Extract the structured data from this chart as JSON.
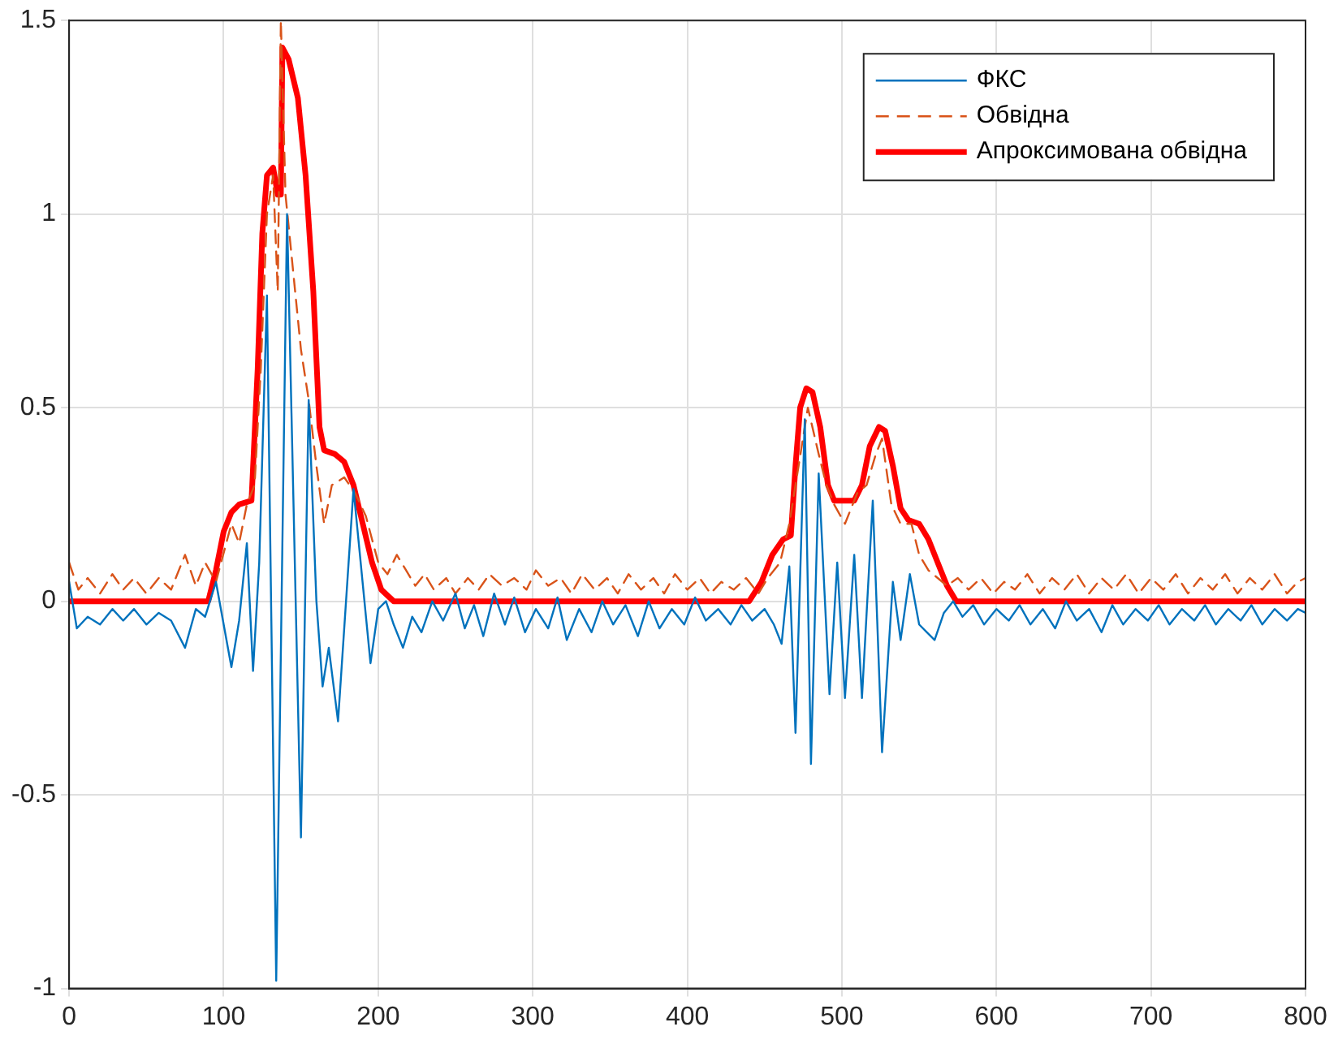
{
  "chart_data": {
    "type": "line",
    "grid": true,
    "legend": "top right",
    "marker": "none",
    "xlim": [
      0,
      800
    ],
    "xticks": [
      0,
      100,
      200,
      300,
      400,
      500,
      600,
      700,
      800
    ],
    "ylim": [
      -1,
      1.5
    ],
    "yticks": [
      -1,
      -0.5,
      0,
      0.5,
      1,
      1.5
    ],
    "series": [
      {
        "name": "ФКС",
        "color": "#0072bd",
        "line_style": "solid",
        "x": [
          0,
          5,
          12,
          20,
          28,
          35,
          42,
          50,
          58,
          66,
          75,
          82,
          88,
          95,
          105,
          110,
          115,
          119,
          123,
          128,
          134,
          141,
          150,
          155,
          160,
          164,
          168,
          174,
          184,
          195,
          200,
          205,
          210,
          216,
          222,
          228,
          235,
          242,
          250,
          256,
          262,
          268,
          275,
          282,
          288,
          295,
          302,
          310,
          316,
          322,
          330,
          338,
          345,
          352,
          360,
          368,
          375,
          382,
          390,
          398,
          405,
          412,
          420,
          428,
          435,
          442,
          450,
          456,
          461,
          466,
          470,
          476,
          480,
          485,
          492,
          497,
          502,
          508,
          513,
          520,
          526,
          533,
          538,
          544,
          550,
          555,
          560,
          566,
          572,
          578,
          585,
          592,
          600,
          608,
          615,
          622,
          630,
          638,
          645,
          652,
          660,
          668,
          675,
          682,
          690,
          698,
          705,
          712,
          720,
          728,
          735,
          742,
          750,
          758,
          765,
          772,
          780,
          788,
          795,
          800
        ],
        "values": [
          0.05,
          -0.07,
          -0.04,
          -0.06,
          -0.02,
          -0.05,
          -0.02,
          -0.06,
          -0.03,
          -0.05,
          -0.12,
          -0.02,
          -0.04,
          0.05,
          -0.17,
          -0.05,
          0.15,
          -0.18,
          0.1,
          0.79,
          -0.98,
          1.0,
          -0.61,
          0.52,
          0.0,
          -0.22,
          -0.12,
          -0.31,
          0.29,
          -0.16,
          -0.02,
          0.0,
          -0.06,
          -0.12,
          -0.04,
          -0.08,
          0.0,
          -0.05,
          0.02,
          -0.07,
          -0.01,
          -0.09,
          0.02,
          -0.06,
          0.01,
          -0.08,
          -0.02,
          -0.07,
          0.01,
          -0.1,
          -0.02,
          -0.08,
          0.0,
          -0.06,
          -0.01,
          -0.09,
          0.0,
          -0.07,
          -0.02,
          -0.06,
          0.01,
          -0.05,
          -0.02,
          -0.06,
          -0.01,
          -0.05,
          -0.02,
          -0.06,
          -0.11,
          0.09,
          -0.34,
          0.47,
          -0.42,
          0.33,
          -0.24,
          0.1,
          -0.25,
          0.12,
          -0.25,
          0.26,
          -0.39,
          0.05,
          -0.1,
          0.07,
          -0.06,
          -0.08,
          -0.1,
          -0.03,
          0.0,
          -0.04,
          -0.01,
          -0.06,
          -0.02,
          -0.05,
          -0.01,
          -0.06,
          -0.02,
          -0.07,
          0.0,
          -0.05,
          -0.02,
          -0.08,
          -0.01,
          -0.06,
          -0.02,
          -0.05,
          -0.01,
          -0.06,
          -0.02,
          -0.05,
          -0.01,
          -0.06,
          -0.02,
          -0.05,
          -0.01,
          -0.06,
          -0.02,
          -0.05,
          -0.02,
          -0.03
        ]
      },
      {
        "name": "Обвідна",
        "color": "#d95319",
        "line_style": "dashed",
        "x": [
          0,
          6,
          12,
          20,
          28,
          35,
          42,
          50,
          58,
          66,
          75,
          82,
          88,
          95,
          105,
          110,
          115,
          120,
          124,
          128,
          132,
          135,
          137,
          140,
          145,
          150,
          155,
          160,
          165,
          170,
          178,
          185,
          192,
          200,
          206,
          212,
          218,
          224,
          230,
          236,
          244,
          250,
          258,
          265,
          272,
          280,
          288,
          296,
          302,
          310,
          318,
          325,
          332,
          340,
          348,
          355,
          362,
          370,
          378,
          385,
          392,
          400,
          408,
          415,
          422,
          430,
          438,
          446,
          452,
          460,
          466,
          472,
          478,
          485,
          490,
          495,
          502,
          510,
          516,
          522,
          526,
          532,
          538,
          545,
          550,
          556,
          562,
          568,
          575,
          582,
          590,
          598,
          605,
          612,
          620,
          628,
          636,
          644,
          652,
          660,
          668,
          676,
          684,
          692,
          700,
          708,
          716,
          724,
          732,
          740,
          748,
          756,
          764,
          772,
          780,
          788,
          795,
          800
        ],
        "values": [
          0.1,
          0.03,
          0.06,
          0.02,
          0.07,
          0.03,
          0.06,
          0.02,
          0.06,
          0.03,
          0.12,
          0.04,
          0.1,
          0.05,
          0.2,
          0.15,
          0.25,
          0.3,
          0.6,
          1.0,
          1.1,
          0.8,
          1.5,
          1.05,
          0.85,
          0.65,
          0.52,
          0.35,
          0.2,
          0.3,
          0.32,
          0.28,
          0.22,
          0.1,
          0.07,
          0.12,
          0.08,
          0.04,
          0.07,
          0.03,
          0.06,
          0.02,
          0.06,
          0.03,
          0.07,
          0.04,
          0.06,
          0.03,
          0.08,
          0.04,
          0.06,
          0.02,
          0.07,
          0.03,
          0.06,
          0.02,
          0.07,
          0.03,
          0.06,
          0.02,
          0.07,
          0.03,
          0.06,
          0.02,
          0.05,
          0.03,
          0.06,
          0.02,
          0.06,
          0.1,
          0.2,
          0.35,
          0.5,
          0.38,
          0.3,
          0.25,
          0.2,
          0.28,
          0.3,
          0.38,
          0.42,
          0.25,
          0.2,
          0.2,
          0.12,
          0.08,
          0.06,
          0.04,
          0.06,
          0.03,
          0.06,
          0.02,
          0.05,
          0.03,
          0.07,
          0.02,
          0.06,
          0.03,
          0.07,
          0.02,
          0.06,
          0.03,
          0.07,
          0.02,
          0.06,
          0.03,
          0.07,
          0.02,
          0.06,
          0.03,
          0.07,
          0.02,
          0.06,
          0.03,
          0.07,
          0.02,
          0.05,
          0.06
        ]
      },
      {
        "name": "Апроксимована обвідна",
        "color": "#ff0000",
        "line_style": "solid",
        "x": [
          0,
          90,
          95,
          100,
          105,
          110,
          118,
          122,
          125,
          128,
          132,
          135,
          137,
          138,
          142,
          148,
          153,
          158,
          162,
          165,
          172,
          178,
          184,
          190,
          196,
          202,
          210,
          440,
          448,
          455,
          462,
          467,
          470,
          473,
          477,
          481,
          486,
          491,
          495,
          508,
          513,
          518,
          524,
          528,
          533,
          538,
          543,
          550,
          556,
          562,
          568,
          574,
          800
        ],
        "values": [
          0,
          0,
          0.08,
          0.18,
          0.23,
          0.25,
          0.26,
          0.6,
          0.95,
          1.1,
          1.12,
          1.05,
          1.05,
          1.43,
          1.4,
          1.3,
          1.1,
          0.8,
          0.45,
          0.39,
          0.38,
          0.36,
          0.3,
          0.2,
          0.1,
          0.03,
          0,
          0,
          0.05,
          0.12,
          0.16,
          0.17,
          0.35,
          0.5,
          0.55,
          0.54,
          0.45,
          0.3,
          0.26,
          0.26,
          0.3,
          0.4,
          0.45,
          0.44,
          0.35,
          0.24,
          0.21,
          0.2,
          0.16,
          0.1,
          0.04,
          0,
          0
        ]
      }
    ]
  }
}
